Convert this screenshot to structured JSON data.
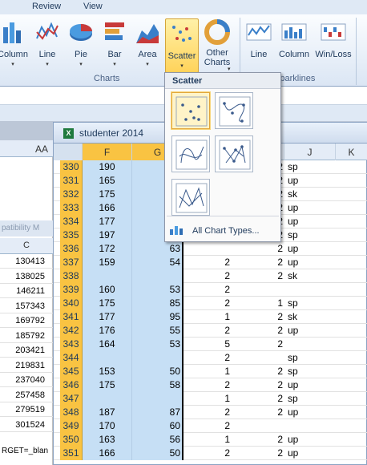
{
  "ribbon": {
    "tabs": [
      "Review",
      "View"
    ],
    "buttons": [
      {
        "label": "Column",
        "icon": "column-chart-icon"
      },
      {
        "label": "Line",
        "icon": "line-chart-icon"
      },
      {
        "label": "Pie",
        "icon": "pie-chart-icon"
      },
      {
        "label": "Bar",
        "icon": "bar-chart-icon"
      },
      {
        "label": "Area",
        "icon": "area-chart-icon"
      },
      {
        "label": "Scatter",
        "icon": "scatter-chart-icon"
      },
      {
        "label": "Other Charts",
        "label_line1": "Other",
        "label_line2": "Charts",
        "icon": "other-charts-icon"
      },
      {
        "label": "Line",
        "icon": "sparkline-line-icon"
      },
      {
        "label": "Column",
        "icon": "sparkline-column-icon"
      },
      {
        "label": "Win/Loss",
        "icon": "sparkline-winloss-icon"
      }
    ],
    "groups": {
      "charts": "Charts",
      "sparklines": "Sparklines"
    }
  },
  "background_sheet": {
    "col_label": "AA",
    "compat_text": "patibility M",
    "c_header": "C",
    "c_values": [
      "130413",
      "138025",
      "146211",
      "157343",
      "169792",
      "185792",
      "203421",
      "219831",
      "237040",
      "257458",
      "279519",
      "301524"
    ],
    "formula_text": "RGET=_blan"
  },
  "workbook": {
    "title": "studenter 2014",
    "title_icon": "excel-workbook-icon",
    "columns": [
      "F",
      "G",
      "H",
      "I",
      "J",
      "K"
    ],
    "rows": [
      {
        "n": "330",
        "f": "190",
        "g": "",
        "h": "",
        "i": "2",
        "j": "sp"
      },
      {
        "n": "331",
        "f": "165",
        "g": "",
        "h": "",
        "i": "2",
        "j": "up"
      },
      {
        "n": "332",
        "f": "175",
        "g": "",
        "h": "",
        "i": "2",
        "j": "sk"
      },
      {
        "n": "333",
        "f": "166",
        "g": "",
        "h": "",
        "i": "2",
        "j": "up"
      },
      {
        "n": "334",
        "f": "177",
        "g": "",
        "h": "",
        "i": "2",
        "j": "up"
      },
      {
        "n": "335",
        "f": "197",
        "g": "",
        "h": "",
        "i": "2",
        "j": "sp"
      },
      {
        "n": "336",
        "f": "172",
        "g": "63",
        "h": "",
        "i": "2",
        "j": "up"
      },
      {
        "n": "337",
        "f": "159",
        "g": "54",
        "h": "2",
        "i": "2",
        "j": "up"
      },
      {
        "n": "338",
        "f": "",
        "g": "",
        "h": "2",
        "i": "2",
        "j": "sk"
      },
      {
        "n": "339",
        "f": "160",
        "g": "53",
        "h": "2",
        "i": "",
        "j": ""
      },
      {
        "n": "340",
        "f": "175",
        "g": "85",
        "h": "2",
        "i": "1",
        "j": "sp"
      },
      {
        "n": "341",
        "f": "177",
        "g": "95",
        "h": "1",
        "i": "2",
        "j": "sk"
      },
      {
        "n": "342",
        "f": "176",
        "g": "55",
        "h": "2",
        "i": "2",
        "j": "up"
      },
      {
        "n": "343",
        "f": "164",
        "g": "53",
        "h": "5",
        "i": "2",
        "j": ""
      },
      {
        "n": "344",
        "f": "",
        "g": "",
        "h": "2",
        "i": "",
        "j": "sp"
      },
      {
        "n": "345",
        "f": "153",
        "g": "50",
        "h": "1",
        "i": "2",
        "j": "sp"
      },
      {
        "n": "346",
        "f": "175",
        "g": "58",
        "h": "2",
        "i": "2",
        "j": "up"
      },
      {
        "n": "347",
        "f": "",
        "g": "",
        "h": "1",
        "i": "2",
        "j": "sp"
      },
      {
        "n": "348",
        "f": "187",
        "g": "87",
        "h": "2",
        "i": "2",
        "j": "up"
      },
      {
        "n": "349",
        "f": "170",
        "g": "60",
        "h": "2",
        "i": "",
        "j": ""
      },
      {
        "n": "350",
        "f": "163",
        "g": "56",
        "h": "1",
        "i": "2",
        "j": "up"
      },
      {
        "n": "351",
        "f": "166",
        "g": "50",
        "h": "2",
        "i": "2",
        "j": "up"
      }
    ]
  },
  "dropdown": {
    "header": "Scatter",
    "options": [
      {
        "name": "scatter-markers-only-icon",
        "selected": true
      },
      {
        "name": "scatter-smooth-lines-markers-icon",
        "selected": false
      },
      {
        "name": "scatter-smooth-lines-icon",
        "selected": false
      },
      {
        "name": "scatter-straight-lines-markers-icon",
        "selected": false
      },
      {
        "name": "scatter-straight-lines-icon",
        "selected": false
      }
    ],
    "all_chart_types": "All Chart Types...",
    "all_chart_types_icon": "chart-types-icon"
  }
}
